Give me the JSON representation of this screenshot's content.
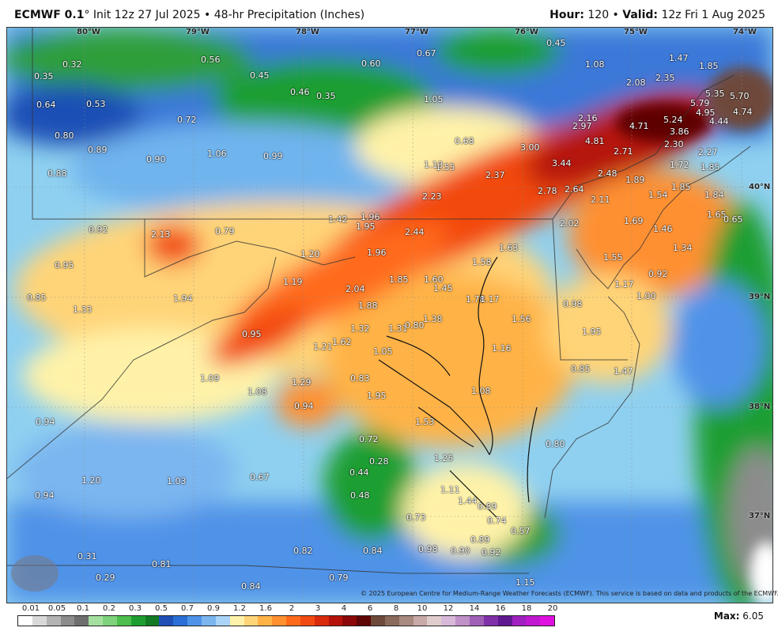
{
  "header": {
    "model": "ECMWF 0.1",
    "degree": "°",
    "init": "Init 12z 27 Jul 2025",
    "product": "48-hr Precipitation (Inches)",
    "hour_label": "Hour:",
    "hour": "120",
    "valid_label": "Valid:",
    "valid": "12z Fri 1 Aug 2025"
  },
  "longitude_labels": [
    "80°W",
    "79°W",
    "78°W",
    "77°W",
    "76°W",
    "75°W",
    "74°W"
  ],
  "latitude_labels": [
    "40°N",
    "39°N",
    "38°N",
    "37°N"
  ],
  "values": [
    "0.32",
    "0.56",
    "0.60",
    "0.67",
    "0.45",
    "1.08",
    "1.47",
    "1.85",
    "0.35",
    "0.64",
    "0.53",
    "0.45",
    "0.46",
    "0.35",
    "1.05",
    "2.08",
    "2.35",
    "5.79",
    "5.35",
    "5.70",
    "0.72",
    "2.16",
    "5.24",
    "4.95",
    "4.74",
    "4.44",
    "0.80",
    "0.68",
    "2.97",
    "4.71",
    "3.86",
    "0.89",
    "0.90",
    "1.06",
    "0.99",
    "3.00",
    "4.81",
    "2.71",
    "2.30",
    "2.27",
    "0.88",
    "1.13",
    "1.55",
    "3.44",
    "2.48",
    "1.72",
    "1.85",
    "2.37",
    "2.78",
    "2.64",
    "1.89",
    "1.85",
    "2.23",
    "2.11",
    "1.54",
    "1.84",
    "1.42",
    "1.96",
    "2.02",
    "1.69",
    "1.46",
    "1.65",
    "0.65",
    "0.92",
    "2.13",
    "0.79",
    "1.95",
    "2.44",
    "1.63",
    "1.34",
    "1.20",
    "1.96",
    "1.58",
    "1.55",
    "0.95",
    "1.85",
    "1.60",
    "0.92",
    "1.19",
    "2.04",
    "1.45",
    "1.17",
    "1.00",
    "0.85",
    "1.94",
    "1.88",
    "1.78",
    "1.17",
    "0.98",
    "1.33",
    "1.38",
    "1.56",
    "1.32",
    "1.31",
    "0.80",
    "1.95",
    "0.95",
    "1.21",
    "1.62",
    "1.16",
    "1.05",
    "1.09",
    "1.08",
    "1.29",
    "0.83",
    "0.85",
    "1.47",
    "1.08",
    "1.95",
    "0.94",
    "0.94",
    "1.53",
    "0.72",
    "0.28",
    "0.80",
    "1.25",
    "0.44",
    "1.20",
    "1.03",
    "0.67",
    "0.48",
    "1.11",
    "0.94",
    "1.44",
    "0.89",
    "0.73",
    "0.74",
    "0.57",
    "0.89",
    "0.82",
    "0.84",
    "0.98",
    "0.90",
    "0.92",
    "0.31",
    "0.81",
    "0.29",
    "0.79",
    "0.84",
    "1.15"
  ],
  "copyright": "© 2025 European Centre for Medium-Range Weather Forecasts (ECMWF). This service is based on data and products of the ECMWF.",
  "legend": {
    "ticks": [
      "0.01",
      "0.05",
      "0.1",
      "0.2",
      "0.3",
      "0.5",
      "0.7",
      "0.9",
      "1.2",
      "1.6",
      "2",
      "3",
      "4",
      "6",
      "8",
      "10",
      "12",
      "14",
      "16",
      "18",
      "20"
    ],
    "colors": [
      "#ffffff",
      "#d9d9d9",
      "#b3b3b3",
      "#8c8c8c",
      "#6e6e6e",
      "#a6e0a0",
      "#7ed37a",
      "#4cbf4c",
      "#1e9e30",
      "#127a24",
      "#1f4fb5",
      "#2b6fd6",
      "#4f93e8",
      "#7cb6f0",
      "#aad4f7",
      "#fff2a8",
      "#ffd478",
      "#ffb347",
      "#ff9030",
      "#ff6a1a",
      "#f24a10",
      "#d92a0c",
      "#b5120a",
      "#8c0808",
      "#5e0505",
      "#6e4a3a",
      "#8a6a5a",
      "#a88a80",
      "#c8aaa8",
      "#e0cccc",
      "#d8b8d8",
      "#c090c8",
      "#a060b8",
      "#8030a8",
      "#601890",
      "#a020c0",
      "#c018d0",
      "#e010e0"
    ]
  },
  "max": {
    "label": "Max:",
    "value": "6.05"
  },
  "colors": {
    "water": "#8fd0f0",
    "heavy": "#d92a0c",
    "extreme": "#5e0505"
  }
}
